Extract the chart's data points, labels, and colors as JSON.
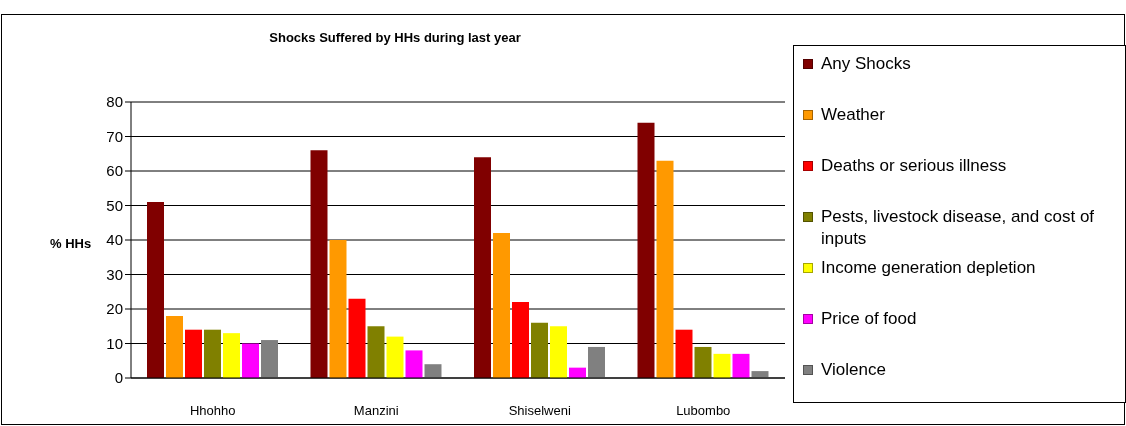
{
  "chart_data": {
    "type": "bar",
    "title": "Shocks Suffered by HHs during last year",
    "ylabel": "% HHs",
    "categories": [
      "Hhohho",
      "Manzini",
      "Shiselweni",
      "Lubombo"
    ],
    "series": [
      {
        "name": "Any Shocks",
        "color": "#800000",
        "values": [
          51,
          66,
          64,
          74
        ]
      },
      {
        "name": "Weather",
        "color": "#ff9900",
        "values": [
          18,
          40,
          42,
          63
        ]
      },
      {
        "name": "Deaths or serious illness",
        "color": "#ff0000",
        "values": [
          14,
          23,
          22,
          14
        ]
      },
      {
        "name": "Pests, livestock disease, and cost of inputs",
        "color": "#808000",
        "values": [
          14,
          15,
          16,
          9
        ]
      },
      {
        "name": "Income generation depletion",
        "color": "#ffff00",
        "values": [
          13,
          12,
          15,
          7
        ]
      },
      {
        "name": "Price of food",
        "color": "#ff00ff",
        "values": [
          10,
          8,
          3,
          7
        ]
      },
      {
        "name": "Violence",
        "color": "#808080",
        "values": [
          11,
          4,
          9,
          2
        ]
      }
    ],
    "ylim": [
      0,
      80
    ],
    "yticks": [
      0,
      10,
      20,
      30,
      40,
      50,
      60,
      70,
      80
    ],
    "grid": "y",
    "legend": "right"
  }
}
